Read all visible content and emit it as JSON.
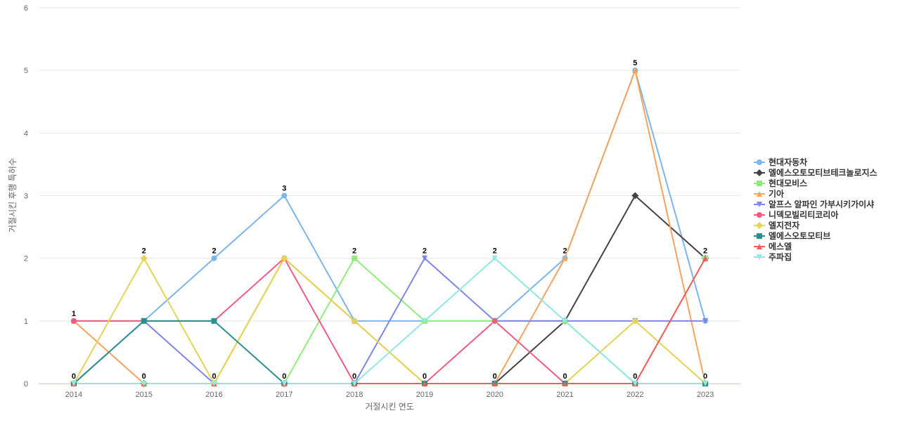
{
  "chart_data": {
    "type": "line",
    "xlabel": "거절시킨 연도",
    "ylabel": "거절시킨 후행 특허수",
    "x": [
      "2014",
      "2015",
      "2016",
      "2017",
      "2018",
      "2019",
      "2020",
      "2021",
      "2022",
      "2023"
    ],
    "ylim": [
      0,
      6
    ],
    "yticks": [
      0,
      1,
      2,
      3,
      4,
      5,
      6
    ],
    "grid": true,
    "legend_position": "right",
    "series": [
      {
        "name": "현대자동차",
        "color": "#7cb5ec",
        "marker": "circle",
        "values": [
          1,
          1,
          2,
          3,
          1,
          1,
          1,
          2,
          5,
          1
        ]
      },
      {
        "name": "엘에스오토모티브테크놀로지스",
        "color": "#434348",
        "marker": "diamond",
        "values": [
          0,
          0,
          0,
          0,
          0,
          0,
          0,
          1,
          3,
          2
        ]
      },
      {
        "name": "현대모비스",
        "color": "#90ed7d",
        "marker": "square",
        "values": [
          0,
          0,
          0,
          0,
          2,
          1,
          1,
          1,
          0,
          2
        ]
      },
      {
        "name": "기아",
        "color": "#f7a35c",
        "marker": "triangle",
        "values": [
          1,
          0,
          0,
          2,
          1,
          0,
          0,
          2,
          5,
          0
        ]
      },
      {
        "name": "알프스 알파인 가부시키가이샤",
        "color": "#8085e9",
        "marker": "triangle-down",
        "values": [
          0,
          1,
          0,
          0,
          0,
          2,
          1,
          1,
          1,
          1
        ]
      },
      {
        "name": "니덱모빌리티코리아",
        "color": "#f15c80",
        "marker": "circle",
        "values": [
          1,
          1,
          1,
          2,
          0,
          0,
          1,
          0,
          0,
          0
        ]
      },
      {
        "name": "엘지전자",
        "color": "#e4d354",
        "marker": "diamond",
        "values": [
          0,
          2,
          0,
          2,
          1,
          0,
          0,
          0,
          1,
          0
        ]
      },
      {
        "name": "엘에스오토모티브",
        "color": "#2b908f",
        "marker": "square",
        "values": [
          0,
          1,
          1,
          0,
          0,
          0,
          0,
          0,
          0,
          0
        ]
      },
      {
        "name": "에스엘",
        "color": "#f45b5b",
        "marker": "triangle",
        "values": [
          0,
          0,
          0,
          0,
          0,
          0,
          0,
          0,
          0,
          2
        ]
      },
      {
        "name": "주파집",
        "color": "#91e8e1",
        "marker": "triangle-down",
        "values": [
          0,
          0,
          0,
          0,
          0,
          1,
          2,
          1,
          0,
          0
        ]
      }
    ],
    "data_labels": [
      1,
      2,
      2,
      3,
      2,
      2,
      2,
      2,
      5,
      2
    ]
  }
}
